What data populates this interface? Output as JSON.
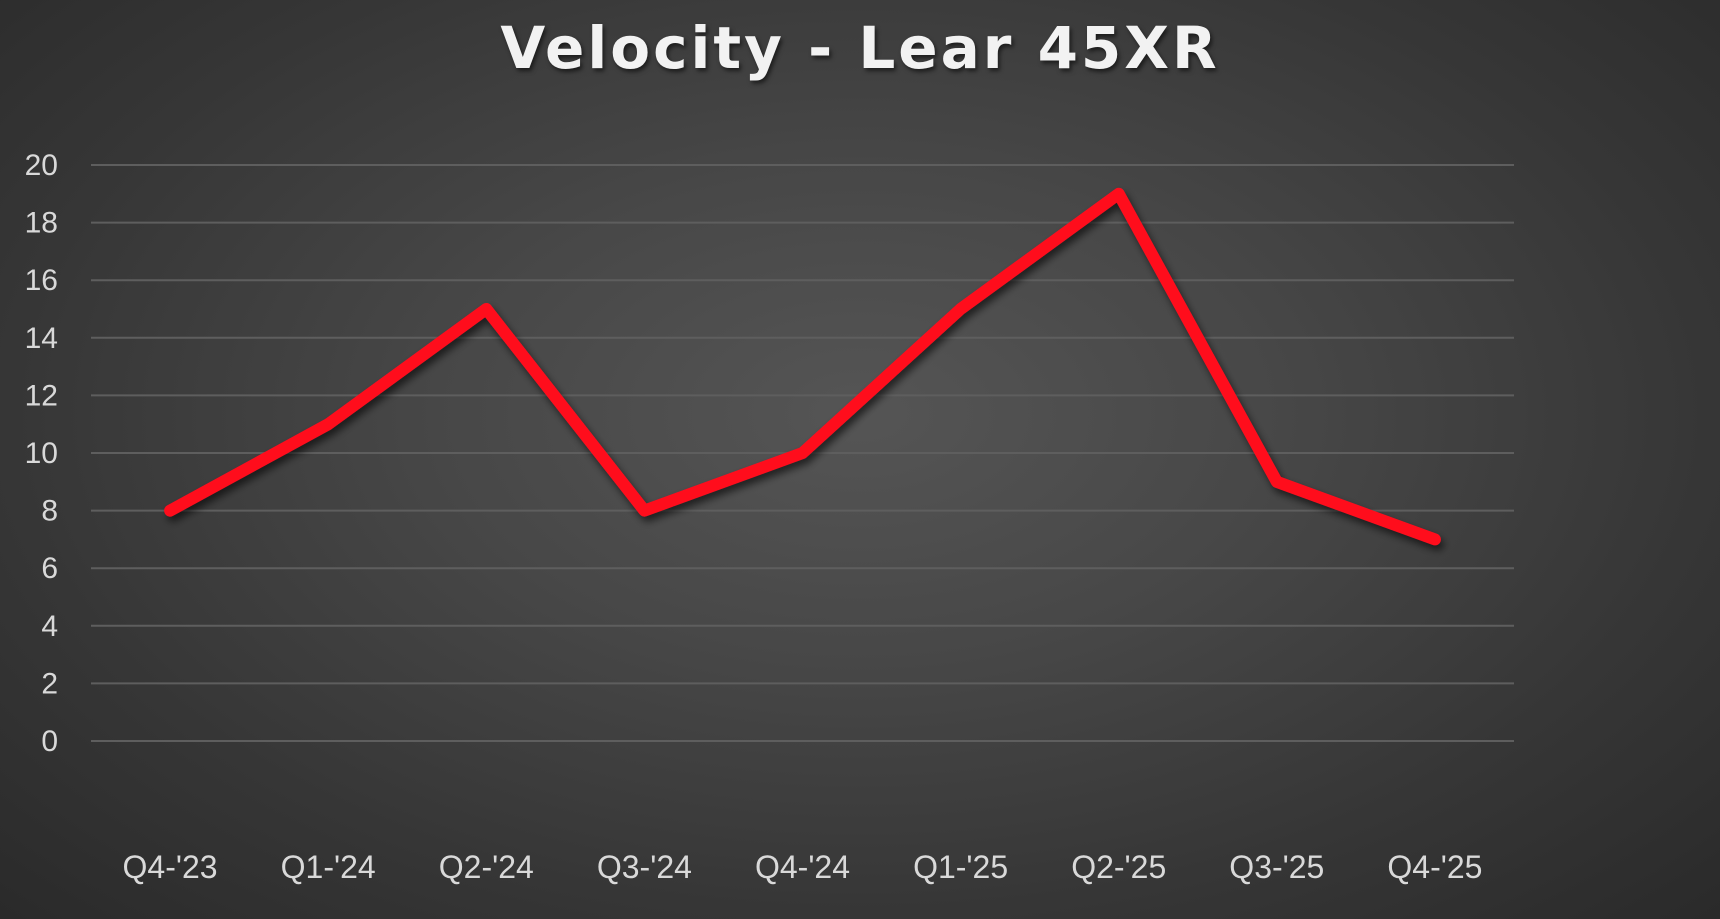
{
  "chart_data": {
    "type": "line",
    "title": "Velocity - Lear 45XR",
    "xlabel": "",
    "ylabel": "",
    "categories": [
      "Q4-'23",
      "Q1-'24",
      "Q2-'24",
      "Q3-'24",
      "Q4-'24",
      "Q1-'25",
      "Q2-'25",
      "Q3-'25",
      "Q4-'25"
    ],
    "series": [
      {
        "name": "Velocity",
        "color": "#ff0a1e",
        "values": [
          8,
          11,
          15,
          8,
          10,
          15,
          19,
          9,
          7
        ]
      }
    ],
    "ylim": [
      0,
      20
    ],
    "yticks": [
      "0",
      "2",
      "4",
      "6",
      "8",
      "10",
      "12",
      "14",
      "16",
      "18",
      "20"
    ],
    "grid": true,
    "legend": "none"
  },
  "colors": {
    "line": "#ff0a1e",
    "grid": "#5e5e5e",
    "text": "#d9d9d9",
    "title": "#f2f2f2"
  }
}
